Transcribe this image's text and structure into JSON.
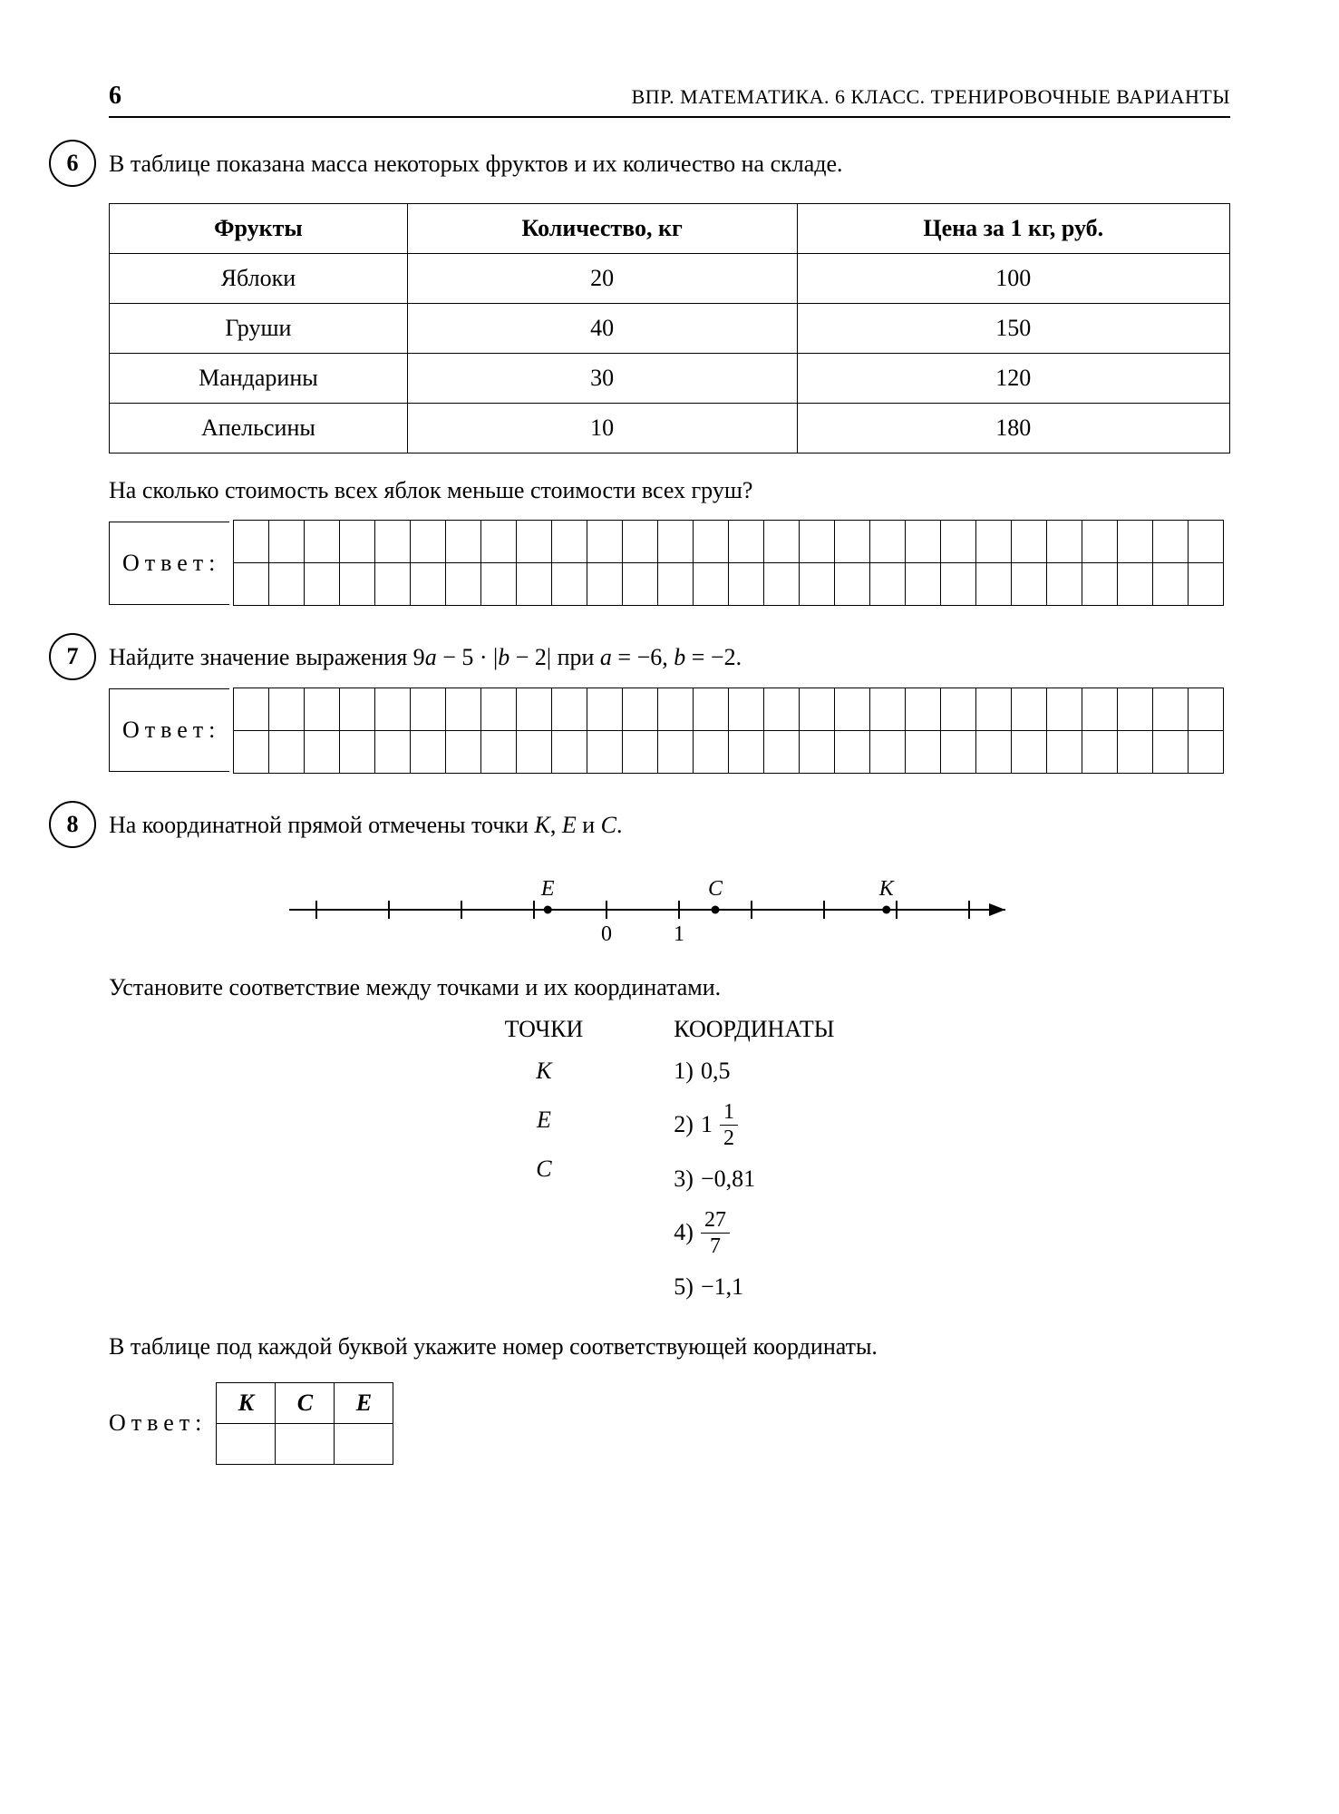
{
  "page_number": "6",
  "header_title": "ВПР. МАТЕМАТИКА. 6 КЛАСС. ТРЕНИРОВОЧНЫЕ ВАРИАНТЫ",
  "answer_label": "Ответ:",
  "grid_cols": 28,
  "grid_rows": 2,
  "problem6": {
    "num": "6",
    "intro": "В таблице показана масса некоторых фруктов и их количество на складе.",
    "columns": [
      "Фрукты",
      "Количество, кг",
      "Цена за 1 кг, руб."
    ],
    "rows": [
      [
        "Яблоки",
        "20",
        "100"
      ],
      [
        "Груши",
        "40",
        "150"
      ],
      [
        "Мандарины",
        "30",
        "120"
      ],
      [
        "Апельсины",
        "10",
        "180"
      ]
    ],
    "question": "На сколько стоимость всех яблок меньше стоимости всех груш?"
  },
  "problem7": {
    "num": "7",
    "text_pre": "Найдите значение выражения 9",
    "text_a": "a",
    "text_mid1": " − 5 · |",
    "text_b": "b",
    "text_mid2": " − 2| при ",
    "text_a2": "a",
    "text_eq1": " = −6, ",
    "text_b2": "b",
    "text_eq2": " = −2."
  },
  "problem8": {
    "num": "8",
    "intro": "На координатной прямой отмечены точки ",
    "point_k": "K",
    "point_e": "E",
    "point_c": "C",
    "intro_and": " и ",
    "intro_comma": ", ",
    "intro_period": ".",
    "line": {
      "tick_start": -4,
      "tick_end": 5,
      "label0": "0",
      "label1": "1",
      "E_x": -0.81,
      "C_x": 1.5,
      "K_x": 3.86,
      "E_label": "E",
      "C_label": "C",
      "K_label": "K"
    },
    "instruction1": "Установите соответствие между точками и их координатами.",
    "heading_points": "ТОЧКИ",
    "heading_coords": "КООРДИНАТЫ",
    "points_order": [
      "K",
      "E",
      "C"
    ],
    "coordinates": [
      {
        "n": "1)",
        "pre": "0,5"
      },
      {
        "n": "2)",
        "mixed_whole": "1",
        "frac_num": "1",
        "frac_den": "2"
      },
      {
        "n": "3)",
        "pre": "−0,81"
      },
      {
        "n": "4)",
        "frac_num": "27",
        "frac_den": "7"
      },
      {
        "n": "5)",
        "pre": "−1,1"
      }
    ],
    "instruction2": "В таблице под каждой буквой укажите номер соответствующей координаты.",
    "answer_headers": [
      "K",
      "C",
      "E"
    ]
  }
}
